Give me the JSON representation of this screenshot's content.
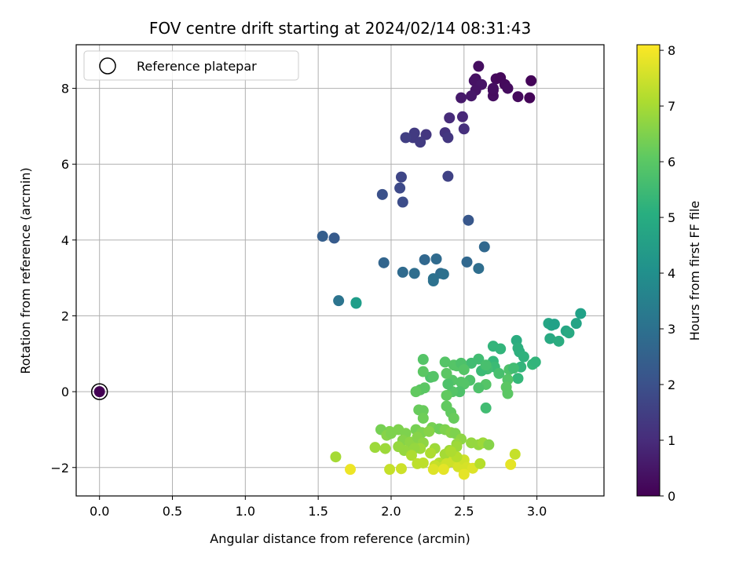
{
  "chart_data": {
    "type": "scatter",
    "title": "FOV centre drift starting at 2024/02/14 08:31:43",
    "xlabel": "Angular distance from reference (arcmin)",
    "ylabel": "Rotation from reference (arcmin)",
    "xlim": [
      -0.16,
      3.46
    ],
    "ylim": [
      -2.75,
      9.15
    ],
    "x_ticks": [
      "0.0",
      "0.5",
      "1.0",
      "1.5",
      "2.0",
      "2.5",
      "3.0"
    ],
    "y_ticks": [
      "−2",
      "0",
      "2",
      "4",
      "6",
      "8"
    ],
    "grid": true,
    "legend": {
      "placement": "top-left",
      "entries": [
        "Reference platepar"
      ]
    },
    "colorbar": {
      "label": "Hours from first FF file",
      "colormap": "viridis",
      "range": [
        0,
        8.1
      ],
      "ticks": [
        "0",
        "1",
        "2",
        "3",
        "4",
        "5",
        "6",
        "7",
        "8"
      ]
    },
    "reference_point": {
      "x": 0.0,
      "y": 0.0,
      "c": 0.0
    },
    "points": [
      {
        "x": 2.6,
        "y": 8.58,
        "c": 0.3
      },
      {
        "x": 2.58,
        "y": 8.25,
        "c": 0.35
      },
      {
        "x": 2.57,
        "y": 8.2,
        "c": 0.4
      },
      {
        "x": 2.62,
        "y": 8.1,
        "c": 0.45
      },
      {
        "x": 2.58,
        "y": 7.95,
        "c": 0.42
      },
      {
        "x": 2.55,
        "y": 7.8,
        "c": 0.5
      },
      {
        "x": 2.48,
        "y": 7.75,
        "c": 0.55
      },
      {
        "x": 2.7,
        "y": 7.8,
        "c": 0.3
      },
      {
        "x": 2.7,
        "y": 7.95,
        "c": 0.25
      },
      {
        "x": 2.72,
        "y": 8.25,
        "c": 0.2
      },
      {
        "x": 2.75,
        "y": 8.28,
        "c": 0.15
      },
      {
        "x": 2.78,
        "y": 8.1,
        "c": 0.2
      },
      {
        "x": 2.8,
        "y": 8.0,
        "c": 0.25
      },
      {
        "x": 2.7,
        "y": 8.0,
        "c": 0.3
      },
      {
        "x": 2.87,
        "y": 7.78,
        "c": 0.2
      },
      {
        "x": 2.95,
        "y": 7.75,
        "c": 0.1
      },
      {
        "x": 2.96,
        "y": 8.2,
        "c": 0.1
      },
      {
        "x": 2.4,
        "y": 7.22,
        "c": 1.0
      },
      {
        "x": 2.49,
        "y": 7.25,
        "c": 0.9
      },
      {
        "x": 2.5,
        "y": 6.93,
        "c": 1.1
      },
      {
        "x": 2.37,
        "y": 6.83,
        "c": 1.2
      },
      {
        "x": 2.39,
        "y": 6.7,
        "c": 1.3
      },
      {
        "x": 2.24,
        "y": 6.78,
        "c": 1.3
      },
      {
        "x": 2.16,
        "y": 6.82,
        "c": 1.4
      },
      {
        "x": 2.15,
        "y": 6.7,
        "c": 1.4
      },
      {
        "x": 2.1,
        "y": 6.7,
        "c": 1.5
      },
      {
        "x": 2.2,
        "y": 6.58,
        "c": 1.4
      },
      {
        "x": 2.07,
        "y": 5.66,
        "c": 1.7
      },
      {
        "x": 2.39,
        "y": 5.68,
        "c": 1.6
      },
      {
        "x": 2.06,
        "y": 5.37,
        "c": 1.8
      },
      {
        "x": 1.94,
        "y": 5.2,
        "c": 2.0
      },
      {
        "x": 2.08,
        "y": 5.0,
        "c": 1.9
      },
      {
        "x": 2.53,
        "y": 4.52,
        "c": 2.2
      },
      {
        "x": 1.53,
        "y": 4.1,
        "c": 2.4
      },
      {
        "x": 1.61,
        "y": 4.05,
        "c": 2.3
      },
      {
        "x": 2.64,
        "y": 3.82,
        "c": 2.7
      },
      {
        "x": 1.95,
        "y": 3.4,
        "c": 2.6
      },
      {
        "x": 2.23,
        "y": 3.48,
        "c": 2.7
      },
      {
        "x": 2.31,
        "y": 3.5,
        "c": 2.8
      },
      {
        "x": 2.52,
        "y": 3.42,
        "c": 2.7
      },
      {
        "x": 2.6,
        "y": 3.25,
        "c": 2.9
      },
      {
        "x": 2.08,
        "y": 3.15,
        "c": 2.8
      },
      {
        "x": 2.16,
        "y": 3.12,
        "c": 2.9
      },
      {
        "x": 2.34,
        "y": 3.12,
        "c": 2.8
      },
      {
        "x": 2.36,
        "y": 3.1,
        "c": 3.0
      },
      {
        "x": 2.29,
        "y": 2.98,
        "c": 3.0
      },
      {
        "x": 2.29,
        "y": 2.92,
        "c": 3.0
      },
      {
        "x": 1.64,
        "y": 2.4,
        "c": 3.1
      },
      {
        "x": 1.76,
        "y": 2.35,
        "c": 4.4
      },
      {
        "x": 1.76,
        "y": 2.33,
        "c": 4.5
      },
      {
        "x": 3.3,
        "y": 2.06,
        "c": 4.6
      },
      {
        "x": 3.08,
        "y": 1.8,
        "c": 4.8
      },
      {
        "x": 3.1,
        "y": 1.75,
        "c": 4.7
      },
      {
        "x": 3.12,
        "y": 1.78,
        "c": 4.6
      },
      {
        "x": 3.27,
        "y": 1.8,
        "c": 4.7
      },
      {
        "x": 3.2,
        "y": 1.6,
        "c": 4.8
      },
      {
        "x": 3.22,
        "y": 1.55,
        "c": 4.9
      },
      {
        "x": 3.09,
        "y": 1.4,
        "c": 4.9
      },
      {
        "x": 3.15,
        "y": 1.33,
        "c": 5.0
      },
      {
        "x": 2.86,
        "y": 1.35,
        "c": 5.0
      },
      {
        "x": 2.87,
        "y": 1.15,
        "c": 5.1
      },
      {
        "x": 2.88,
        "y": 1.05,
        "c": 5.1
      },
      {
        "x": 2.91,
        "y": 0.92,
        "c": 5.2
      },
      {
        "x": 2.7,
        "y": 1.2,
        "c": 5.3
      },
      {
        "x": 2.75,
        "y": 1.13,
        "c": 5.3
      },
      {
        "x": 2.97,
        "y": 0.72,
        "c": 5.4
      },
      {
        "x": 2.99,
        "y": 0.78,
        "c": 5.3
      },
      {
        "x": 2.89,
        "y": 0.65,
        "c": 5.3
      },
      {
        "x": 2.87,
        "y": 0.35,
        "c": 5.4
      },
      {
        "x": 2.7,
        "y": 0.8,
        "c": 5.4
      },
      {
        "x": 2.71,
        "y": 0.65,
        "c": 5.5
      },
      {
        "x": 2.66,
        "y": 0.6,
        "c": 5.6
      },
      {
        "x": 2.62,
        "y": 0.55,
        "c": 5.5
      },
      {
        "x": 2.55,
        "y": 0.75,
        "c": 5.6
      },
      {
        "x": 2.6,
        "y": 0.86,
        "c": 5.6
      },
      {
        "x": 2.65,
        "y": 0.7,
        "c": 5.7
      },
      {
        "x": 2.74,
        "y": 0.48,
        "c": 5.7
      },
      {
        "x": 2.81,
        "y": 0.58,
        "c": 5.8
      },
      {
        "x": 2.84,
        "y": 0.62,
        "c": 5.6
      },
      {
        "x": 2.8,
        "y": 0.32,
        "c": 5.9
      },
      {
        "x": 2.79,
        "y": 0.12,
        "c": 6.0
      },
      {
        "x": 2.8,
        "y": -0.05,
        "c": 6.0
      },
      {
        "x": 2.65,
        "y": -0.43,
        "c": 5.6
      },
      {
        "x": 2.65,
        "y": 0.19,
        "c": 5.9
      },
      {
        "x": 2.6,
        "y": 0.1,
        "c": 5.8
      },
      {
        "x": 2.54,
        "y": 0.3,
        "c": 5.8
      },
      {
        "x": 2.5,
        "y": 0.2,
        "c": 5.9
      },
      {
        "x": 2.48,
        "y": 0.25,
        "c": 5.9
      },
      {
        "x": 2.47,
        "y": 0.0,
        "c": 5.8
      },
      {
        "x": 2.42,
        "y": 0.3,
        "c": 5.9
      },
      {
        "x": 2.42,
        "y": 0.0,
        "c": 5.9
      },
      {
        "x": 2.39,
        "y": 0.2,
        "c": 5.8
      },
      {
        "x": 2.37,
        "y": 0.78,
        "c": 5.9
      },
      {
        "x": 2.43,
        "y": 0.7,
        "c": 5.9
      },
      {
        "x": 2.38,
        "y": 0.48,
        "c": 6.0
      },
      {
        "x": 2.45,
        "y": 0.68,
        "c": 5.9
      },
      {
        "x": 2.48,
        "y": 0.75,
        "c": 5.8
      },
      {
        "x": 2.5,
        "y": 0.58,
        "c": 5.9
      },
      {
        "x": 2.27,
        "y": 0.38,
        "c": 5.8
      },
      {
        "x": 2.29,
        "y": 0.4,
        "c": 5.9
      },
      {
        "x": 2.22,
        "y": 0.53,
        "c": 6.0
      },
      {
        "x": 2.22,
        "y": 0.85,
        "c": 5.9
      },
      {
        "x": 2.23,
        "y": 0.1,
        "c": 6.0
      },
      {
        "x": 2.2,
        "y": 0.05,
        "c": 6.0
      },
      {
        "x": 2.17,
        "y": 0.0,
        "c": 6.1
      },
      {
        "x": 2.19,
        "y": -0.48,
        "c": 6.2
      },
      {
        "x": 2.38,
        "y": -0.38,
        "c": 6.1
      },
      {
        "x": 2.38,
        "y": -0.1,
        "c": 6.1
      },
      {
        "x": 2.41,
        "y": -0.55,
        "c": 6.1
      },
      {
        "x": 2.43,
        "y": -0.7,
        "c": 6.2
      },
      {
        "x": 2.22,
        "y": -0.5,
        "c": 6.2
      },
      {
        "x": 2.22,
        "y": -0.7,
        "c": 6.3
      },
      {
        "x": 2.28,
        "y": -0.95,
        "c": 6.4
      },
      {
        "x": 2.33,
        "y": -0.98,
        "c": 6.3
      },
      {
        "x": 2.17,
        "y": -1.0,
        "c": 6.4
      },
      {
        "x": 2.21,
        "y": -1.08,
        "c": 6.5
      },
      {
        "x": 2.1,
        "y": -1.1,
        "c": 6.5
      },
      {
        "x": 2.05,
        "y": -1.0,
        "c": 6.5
      },
      {
        "x": 1.99,
        "y": -1.05,
        "c": 6.5
      },
      {
        "x": 1.93,
        "y": -1.0,
        "c": 6.4
      },
      {
        "x": 1.97,
        "y": -1.15,
        "c": 6.6
      },
      {
        "x": 2.0,
        "y": -1.1,
        "c": 6.5
      },
      {
        "x": 2.08,
        "y": -1.28,
        "c": 6.6
      },
      {
        "x": 2.13,
        "y": -1.33,
        "c": 6.7
      },
      {
        "x": 2.15,
        "y": -1.4,
        "c": 6.7
      },
      {
        "x": 2.18,
        "y": -1.2,
        "c": 6.6
      },
      {
        "x": 2.22,
        "y": -1.35,
        "c": 6.7
      },
      {
        "x": 2.26,
        "y": -1.05,
        "c": 6.6
      },
      {
        "x": 2.37,
        "y": -1.0,
        "c": 6.5
      },
      {
        "x": 2.41,
        "y": -1.08,
        "c": 6.6
      },
      {
        "x": 2.44,
        "y": -1.1,
        "c": 6.5
      },
      {
        "x": 2.48,
        "y": -1.25,
        "c": 6.7
      },
      {
        "x": 2.45,
        "y": -1.38,
        "c": 6.8
      },
      {
        "x": 2.55,
        "y": -1.35,
        "c": 6.8
      },
      {
        "x": 2.6,
        "y": -1.4,
        "c": 6.8
      },
      {
        "x": 2.63,
        "y": -1.35,
        "c": 6.9
      },
      {
        "x": 2.67,
        "y": -1.4,
        "c": 6.6
      },
      {
        "x": 2.45,
        "y": -1.45,
        "c": 6.9
      },
      {
        "x": 2.4,
        "y": -1.55,
        "c": 6.9
      },
      {
        "x": 2.37,
        "y": -1.65,
        "c": 7.0
      },
      {
        "x": 2.3,
        "y": -1.5,
        "c": 6.9
      },
      {
        "x": 2.2,
        "y": -1.5,
        "c": 6.9
      },
      {
        "x": 2.16,
        "y": -1.5,
        "c": 6.8
      },
      {
        "x": 2.09,
        "y": -1.55,
        "c": 6.8
      },
      {
        "x": 2.05,
        "y": -1.45,
        "c": 6.8
      },
      {
        "x": 1.96,
        "y": -1.5,
        "c": 6.9
      },
      {
        "x": 1.89,
        "y": -1.47,
        "c": 6.9
      },
      {
        "x": 1.62,
        "y": -1.72,
        "c": 7.0
      },
      {
        "x": 2.14,
        "y": -1.68,
        "c": 7.1
      },
      {
        "x": 2.27,
        "y": -1.62,
        "c": 7.1
      },
      {
        "x": 2.33,
        "y": -1.88,
        "c": 7.2
      },
      {
        "x": 2.18,
        "y": -1.9,
        "c": 7.3
      },
      {
        "x": 2.22,
        "y": -1.88,
        "c": 7.3
      },
      {
        "x": 2.3,
        "y": -1.95,
        "c": 7.4
      },
      {
        "x": 2.35,
        "y": -2.0,
        "c": 7.4
      },
      {
        "x": 2.38,
        "y": -1.9,
        "c": 7.5
      },
      {
        "x": 2.42,
        "y": -1.85,
        "c": 7.5
      },
      {
        "x": 2.46,
        "y": -1.98,
        "c": 7.6
      },
      {
        "x": 2.5,
        "y": -1.8,
        "c": 7.5
      },
      {
        "x": 2.52,
        "y": -2.0,
        "c": 7.6
      },
      {
        "x": 2.56,
        "y": -2.02,
        "c": 7.7
      },
      {
        "x": 2.5,
        "y": -2.18,
        "c": 7.8
      },
      {
        "x": 2.29,
        "y": -2.05,
        "c": 7.7
      },
      {
        "x": 2.36,
        "y": -2.05,
        "c": 7.8
      },
      {
        "x": 2.07,
        "y": -2.03,
        "c": 7.5
      },
      {
        "x": 1.99,
        "y": -2.05,
        "c": 7.4
      },
      {
        "x": 1.72,
        "y": -2.05,
        "c": 7.9
      },
      {
        "x": 2.82,
        "y": -1.92,
        "c": 7.8
      },
      {
        "x": 2.85,
        "y": -1.65,
        "c": 7.4
      },
      {
        "x": 2.61,
        "y": -1.9,
        "c": 7.2
      },
      {
        "x": 2.45,
        "y": -1.72,
        "c": 7.2
      },
      {
        "x": 2.41,
        "y": -1.58,
        "c": 7.1
      }
    ]
  }
}
